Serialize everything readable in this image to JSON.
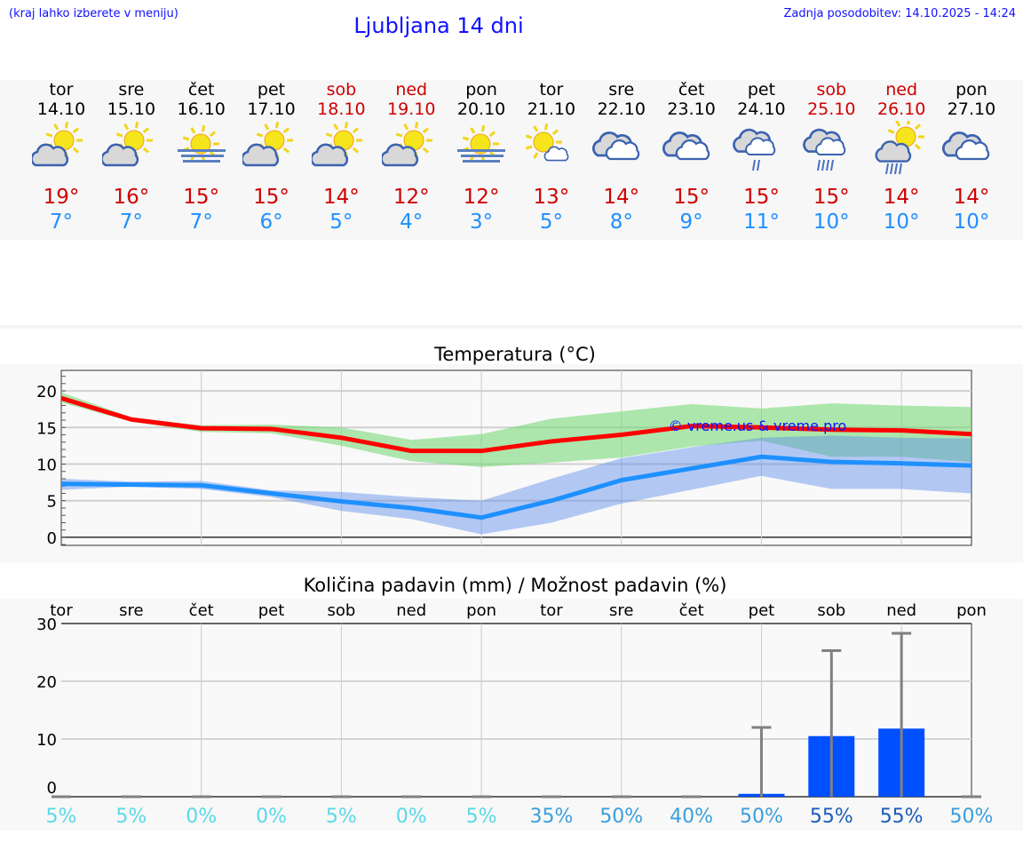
{
  "header": {
    "hint": "(kraj lahko izberete v meniju)",
    "title": "Ljubljana 14 dni",
    "updated": "Zadnja posodobitev: 14.10.2025 - 14:24"
  },
  "colors": {
    "max": "#ff0000",
    "min": "#1e90ff",
    "weekend": "#d00000",
    "bar": "#0050ff"
  },
  "days": [
    {
      "name": "tor",
      "date": "14.10",
      "icon": "sun-cloud",
      "max": "19°",
      "min": "7°",
      "weekend": false
    },
    {
      "name": "sre",
      "date": "15.10",
      "icon": "sun-cloud",
      "max": "16°",
      "min": "7°",
      "weekend": false
    },
    {
      "name": "čet",
      "date": "16.10",
      "icon": "sun-fog",
      "max": "15°",
      "min": "7°",
      "weekend": false
    },
    {
      "name": "pet",
      "date": "17.10",
      "icon": "sun-cloud",
      "max": "15°",
      "min": "6°",
      "weekend": false
    },
    {
      "name": "sob",
      "date": "18.10",
      "icon": "sun-cloud",
      "max": "14°",
      "min": "5°",
      "weekend": true
    },
    {
      "name": "ned",
      "date": "19.10",
      "icon": "sun-cloud",
      "max": "12°",
      "min": "4°",
      "weekend": true
    },
    {
      "name": "pon",
      "date": "20.10",
      "icon": "sun-fog",
      "max": "12°",
      "min": "3°",
      "weekend": false
    },
    {
      "name": "tor",
      "date": "21.10",
      "icon": "sun-small-cloud",
      "max": "13°",
      "min": "5°",
      "weekend": false
    },
    {
      "name": "sre",
      "date": "22.10",
      "icon": "cloudy",
      "max": "14°",
      "min": "8°",
      "weekend": false
    },
    {
      "name": "čet",
      "date": "23.10",
      "icon": "cloudy",
      "max": "15°",
      "min": "9°",
      "weekend": false
    },
    {
      "name": "pet",
      "date": "24.10",
      "icon": "cloud-light-rain",
      "max": "15°",
      "min": "11°",
      "weekend": false
    },
    {
      "name": "sob",
      "date": "25.10",
      "icon": "cloud-rain",
      "max": "15°",
      "min": "10°",
      "weekend": true
    },
    {
      "name": "ned",
      "date": "26.10",
      "icon": "sun-cloud-rain",
      "max": "14°",
      "min": "10°",
      "weekend": true
    },
    {
      "name": "pon",
      "date": "27.10",
      "icon": "cloudy",
      "max": "14°",
      "min": "10°",
      "weekend": false
    }
  ],
  "chart_data": [
    {
      "type": "line",
      "title": "Temperatura (°C)",
      "ylim": [
        -1.1,
        22.8
      ],
      "yticks": [
        "0",
        "5",
        "10",
        "15",
        "20"
      ],
      "grid": true,
      "watermark": "© vreme.us & vreme.pro",
      "series": [
        {
          "key": "max",
          "values": [
            19,
            16.1,
            14.9,
            14.8,
            13.6,
            11.8,
            11.8,
            13.1,
            14.0,
            15.2,
            15.0,
            14.7,
            14.6,
            14.1
          ],
          "band_upper": [
            19.8,
            16.4,
            15.3,
            15.4,
            15.0,
            13.3,
            14.1,
            16.2,
            17.2,
            18.2,
            17.6,
            18.3,
            18.0,
            17.8
          ],
          "band_lower": [
            18.4,
            15.8,
            14.4,
            14.2,
            12.5,
            10.4,
            9.6,
            10.2,
            10.9,
            12.4,
            13.2,
            11.0,
            11.0,
            10.3
          ]
        },
        {
          "key": "min",
          "values": [
            7.3,
            7.2,
            7.1,
            6.0,
            4.9,
            4.0,
            2.7,
            5.0,
            7.8,
            9.4,
            11.0,
            10.3,
            10.1,
            9.8
          ],
          "band_upper": [
            8.0,
            7.6,
            7.7,
            6.4,
            6.2,
            5.5,
            5.0,
            8.0,
            10.8,
            12.3,
            13.6,
            13.9,
            13.6,
            13.5
          ],
          "band_lower": [
            6.5,
            6.9,
            6.6,
            5.5,
            3.6,
            2.5,
            0.4,
            2.0,
            4.6,
            6.5,
            8.4,
            6.6,
            6.6,
            6.0
          ]
        }
      ]
    },
    {
      "type": "bar",
      "title": "Količina padavin (mm) / Možnost padavin (%)",
      "ylim": [
        0,
        30
      ],
      "yticks": [
        "0",
        "10",
        "20",
        "30"
      ],
      "grid": true,
      "categories": [
        "tor",
        "sre",
        "čet",
        "pet",
        "sob",
        "ned",
        "pon",
        "tor",
        "sre",
        "čet",
        "pet",
        "sob",
        "ned",
        "pon"
      ],
      "values": [
        0,
        0,
        0,
        0,
        0,
        0,
        0,
        0,
        0,
        0,
        0.5,
        10.5,
        11.8,
        0
      ],
      "error_max": [
        0,
        0,
        0,
        0,
        0,
        0,
        0,
        0,
        0,
        0,
        12,
        25.3,
        28.3,
        0
      ],
      "probability": [
        "5%",
        "5%",
        "0%",
        "0%",
        "5%",
        "0%",
        "5%",
        "35%",
        "50%",
        "40%",
        "50%",
        "55%",
        "55%",
        "50%"
      ]
    }
  ]
}
